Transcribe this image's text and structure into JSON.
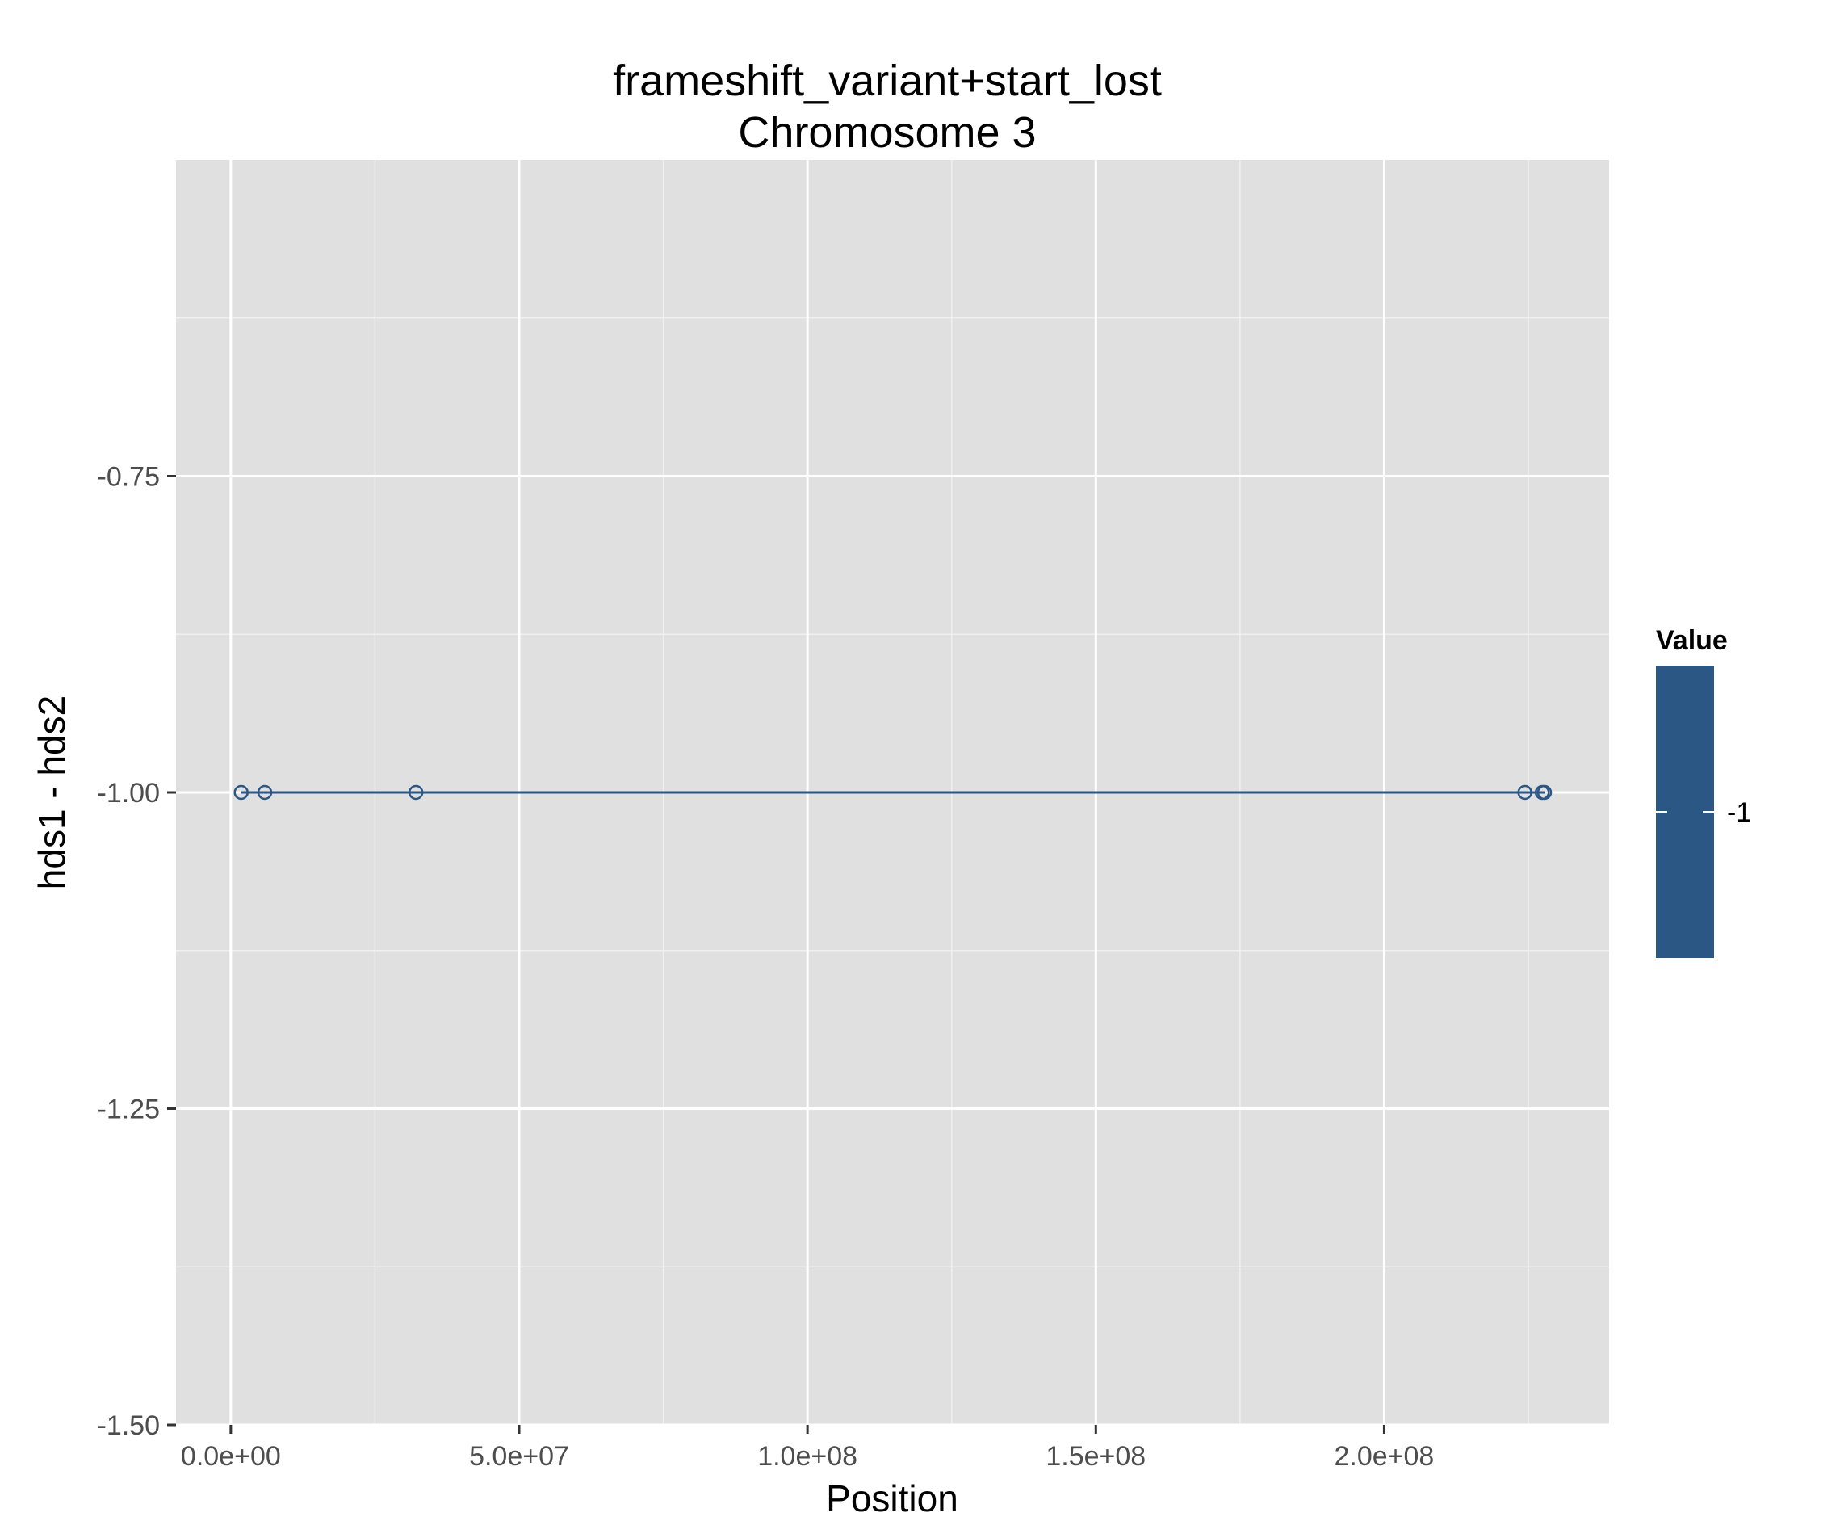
{
  "chart_data": {
    "type": "line",
    "title": "frameshift_variant+start_lost",
    "subtitle": "Chromosome 3",
    "xlabel": "Position",
    "ylabel": "hds1 - hds2",
    "xlim": [
      -9500000,
      239000000
    ],
    "ylim": [
      -1.5,
      -0.5
    ],
    "x_ticks": [
      0,
      50000000,
      100000000,
      150000000,
      200000000
    ],
    "x_tick_labels": [
      "0.0e+00",
      "5.0e+07",
      "1.0e+08",
      "1.5e+08",
      "2.0e+08"
    ],
    "y_ticks": [
      -0.75,
      -1.0,
      -1.25,
      -1.5
    ],
    "y_tick_labels": [
      "-0.75",
      "-1.00",
      "-1.25",
      "-1.50"
    ],
    "grid": true,
    "series": [
      {
        "x": [
          1800000,
          5900000,
          32100000,
          224400000,
          227400000,
          227800000
        ],
        "y": [
          -1,
          -1,
          -1,
          -1,
          -1,
          -1
        ],
        "color": "#2b5784"
      }
    ],
    "legend": {
      "title": "Value",
      "position": "right",
      "labels": [
        "-1"
      ],
      "color": "#2b5784"
    }
  },
  "colors": {
    "panel_background": "#e0e0e0",
    "grid_major": "#ffffff",
    "grid_minor": "#f0f0f0",
    "series": "#2b5784"
  }
}
